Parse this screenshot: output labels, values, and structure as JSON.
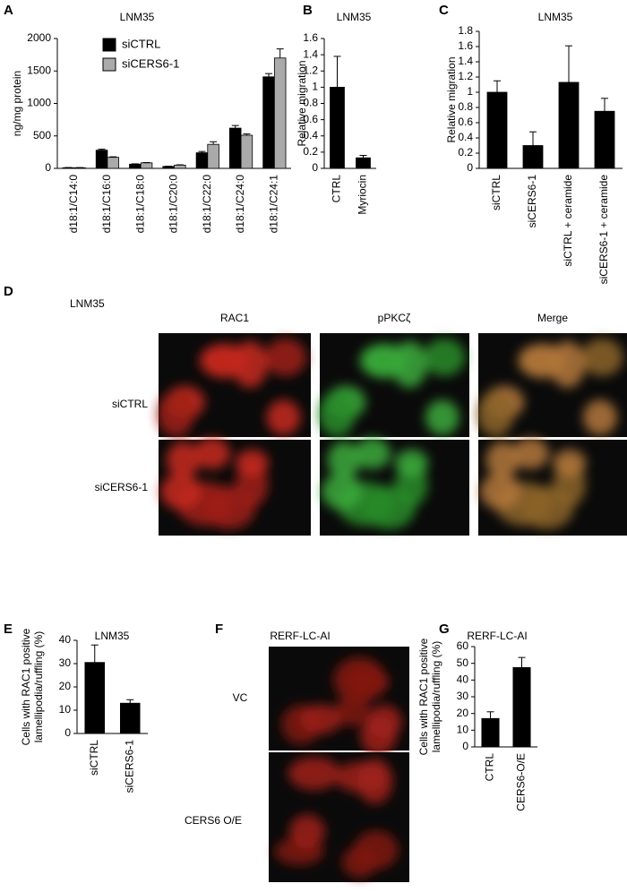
{
  "chart_data": [
    {
      "type": "bar",
      "title": "LNM35",
      "ylabel": [
        "ng/mg protein"
      ],
      "categories": [
        "d18:1/C14:0",
        "d18:1/C16:0",
        "d18:1/C18:0",
        "d18:1/C20:0",
        "d18:1/C22:0",
        "d18:1/C24:0",
        "d18:1/C24:1"
      ],
      "series": [
        {
          "name": "siCTRL",
          "color": "#000000",
          "values": [
            10,
            280,
            65,
            30,
            240,
            620,
            1410
          ],
          "errors": [
            3,
            15,
            5,
            3,
            20,
            40,
            50
          ]
        },
        {
          "name": "siCERS6-1",
          "color": "#aaaaaa",
          "values": [
            10,
            170,
            85,
            50,
            370,
            510,
            1700
          ],
          "errors": [
            2,
            8,
            5,
            5,
            40,
            20,
            140
          ]
        }
      ],
      "ylim": [
        0,
        2000
      ],
      "yticks": [
        0,
        500,
        1000,
        1500,
        2000
      ]
    },
    {
      "type": "bar",
      "title": "LNM35",
      "ylabel": [
        "Relative migration"
      ],
      "categories": [
        "CTRL",
        "Myriocin"
      ],
      "values": [
        1.0,
        0.13
      ],
      "errors": [
        0.38,
        0.03
      ],
      "color": "#000000",
      "ylim": [
        0,
        1.6
      ],
      "yticks": [
        0,
        0.2,
        0.4,
        0.6,
        0.8,
        1,
        1.2,
        1.4,
        1.6
      ]
    },
    {
      "type": "bar",
      "title": "LNM35",
      "ylabel": [
        "Relative migration"
      ],
      "categories": [
        "siCTRL",
        "siCERS6-1",
        "siCTRL + ceramide",
        "siCERS6-1 + ceramide"
      ],
      "values": [
        1.0,
        0.3,
        1.13,
        0.75
      ],
      "errors": [
        0.15,
        0.18,
        0.48,
        0.17
      ],
      "color": "#000000",
      "ylim": [
        0,
        1.8
      ],
      "yticks": [
        0,
        0.2,
        0.4,
        0.6,
        0.8,
        1,
        1.2,
        1.4,
        1.6,
        1.8
      ]
    },
    {
      "type": "bar",
      "title": "LNM35",
      "ylabel": [
        "Cells with RAC1 positive",
        "lamellipodia/ruffling (%)"
      ],
      "categories": [
        "siCTRL",
        "siCERS6-1"
      ],
      "values": [
        30.5,
        13
      ],
      "errors": [
        7.5,
        1.5
      ],
      "color": "#000000",
      "ylim": [
        0,
        40
      ],
      "yticks": [
        0,
        10,
        20,
        30,
        40
      ]
    },
    {
      "type": "bar",
      "title": "RERF-LC-AI",
      "ylabel": [
        "Cells with RAC1 positive",
        "lamellipodia/ruffling (%)"
      ],
      "categories": [
        "CTRL",
        "CERS6-O/E"
      ],
      "values": [
        17,
        47.5
      ],
      "errors": [
        4,
        6
      ],
      "color": "#000000",
      "ylim": [
        0,
        60
      ],
      "yticks": [
        0,
        10,
        20,
        30,
        40,
        50,
        60
      ]
    }
  ],
  "panels": {
    "letters": [
      "A",
      "B",
      "C",
      "D",
      "E",
      "F",
      "G"
    ],
    "d": {
      "title": "LNM35",
      "columns": [
        "RAC1",
        "pPKCζ",
        "Merge"
      ],
      "rows": [
        "siCTRL",
        "siCERS6-1"
      ]
    },
    "f": {
      "title": "RERF-LC-AI",
      "rows": [
        "VC",
        "CERS6 O/E"
      ]
    }
  }
}
